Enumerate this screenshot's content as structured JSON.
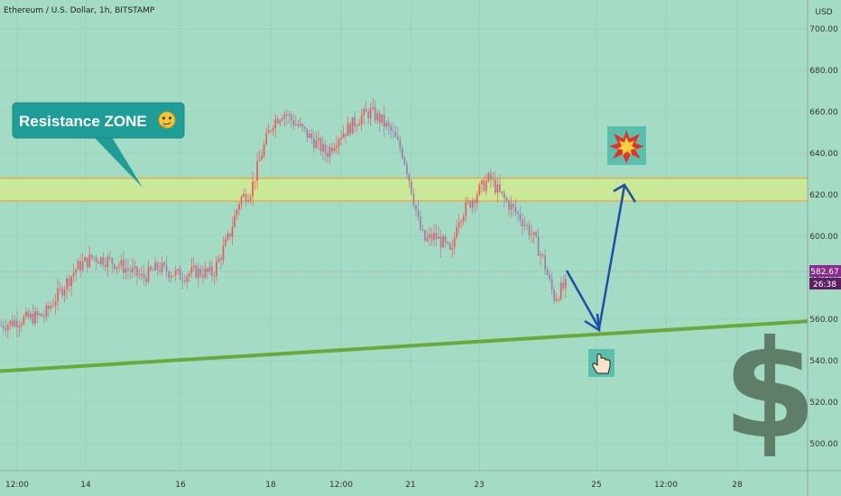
{
  "header": {
    "title": "Ethereum / U.S. Dollar, 1h, BITSTAMP"
  },
  "colors": {
    "background": "#a3dbc4",
    "up_candle": "#f05a5a",
    "down_candle": "#a07ea8",
    "support_line": "#6aaa3c",
    "resistance_fill": "#d6ec8a",
    "resistance_border": "#e8a33c",
    "arrow": "#1c4fa8",
    "callout": "#1f9e98",
    "price_label": "#8a2c8e",
    "dollar": "#5e7e6a"
  },
  "callout": {
    "text": "Resistance ZONE",
    "icon": "thinking-face-emoji-icon"
  },
  "price_label": {
    "price": "582.67",
    "countdown": "26:38"
  },
  "icons": {
    "explosion": "explosion-icon",
    "pointer": "pointing-hand-icon",
    "dollar": "dollar-sign-icon"
  },
  "chart_data": {
    "type": "candlestick",
    "symbol": "Ethereum / U.S. Dollar",
    "timeframe": "1h",
    "exchange": "BITSTAMP",
    "yunit": "USD",
    "ylim": [
      480,
      720
    ],
    "yticks": [
      "700.00",
      "680.00",
      "660.00",
      "640.00",
      "620.00",
      "600.00",
      "580.00",
      "560.00",
      "540.00",
      "520.00",
      "500.00"
    ],
    "xticks": [
      "12:00",
      "14",
      "16",
      "18",
      "12:00",
      "21",
      "23",
      "25",
      "12:00",
      "28"
    ],
    "current_price": 582.67,
    "resistance_zone": [
      617,
      628
    ],
    "support_line": {
      "start": 535,
      "end": 559
    },
    "path_annotation": {
      "points": [
        [
          582,
          55
        ],
        [
          555,
          64
        ],
        [
          625,
          71
        ]
      ],
      "note": "[price, relative time step]"
    },
    "price_path": [
      [
        0,
        557
      ],
      [
        4,
        560
      ],
      [
        8,
        562
      ],
      [
        10,
        570
      ],
      [
        14,
        585
      ],
      [
        17,
        590
      ],
      [
        20,
        588
      ],
      [
        22,
        586
      ],
      [
        26,
        580
      ],
      [
        29,
        585
      ],
      [
        33,
        581
      ],
      [
        36,
        583
      ],
      [
        39,
        582
      ],
      [
        42,
        600
      ],
      [
        44,
        618
      ],
      [
        46,
        622
      ],
      [
        48,
        640
      ],
      [
        50,
        655
      ],
      [
        52,
        660
      ],
      [
        54,
        655
      ],
      [
        56,
        650
      ],
      [
        58,
        645
      ],
      [
        60,
        640
      ],
      [
        62,
        648
      ],
      [
        64,
        652
      ],
      [
        66,
        657
      ],
      [
        68,
        660
      ],
      [
        70,
        656
      ],
      [
        72,
        650
      ],
      [
        73,
        645
      ],
      [
        74,
        640
      ],
      [
        75,
        630
      ],
      [
        76,
        618
      ],
      [
        77,
        605
      ],
      [
        78,
        598
      ],
      [
        80,
        600
      ],
      [
        82,
        595
      ],
      [
        83,
        590
      ],
      [
        84,
        608
      ],
      [
        86,
        615
      ],
      [
        88,
        622
      ],
      [
        90,
        628
      ],
      [
        92,
        620
      ],
      [
        94,
        614
      ],
      [
        96,
        608
      ],
      [
        98,
        600
      ],
      [
        100,
        588
      ],
      [
        101,
        578
      ],
      [
        102,
        570
      ],
      [
        103,
        574
      ],
      [
        104,
        576
      ]
    ],
    "time_span": 104
  }
}
